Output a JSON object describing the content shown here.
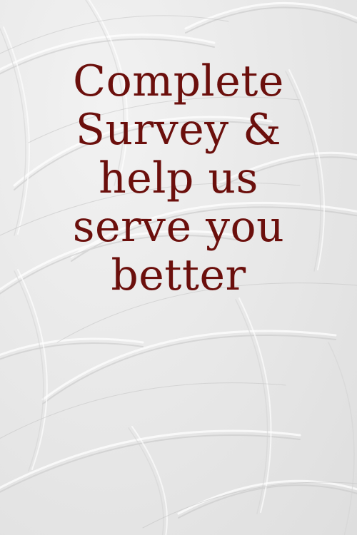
{
  "poster": {
    "lines": [
      "Complete",
      "Survey &",
      "help us",
      "serve you",
      "better"
    ]
  },
  "colors": {
    "text": "#6b0f0c",
    "background": "#ececec"
  }
}
